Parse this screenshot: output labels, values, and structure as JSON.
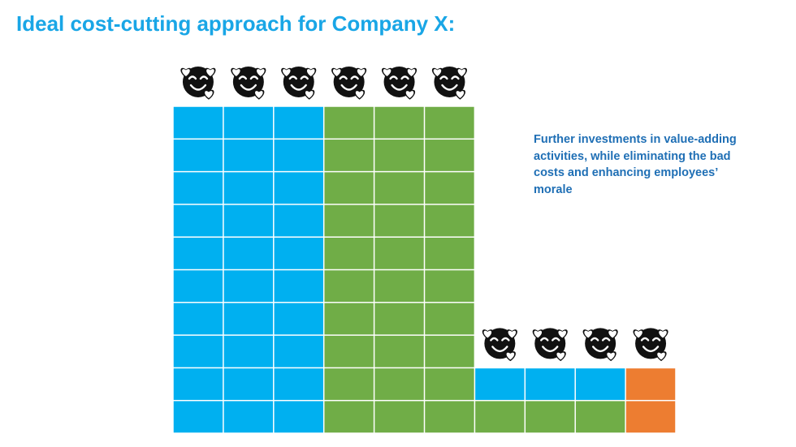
{
  "title": "Ideal cost-cutting approach for Company X:",
  "note_lines": [
    "Further investments in value-adding",
    "activities, while eliminating the bad",
    "costs and enhancing employees’",
    "morale"
  ],
  "colors": {
    "title": "#19a6e6",
    "note": "#1f6fb5",
    "blue": "#00b0f0",
    "green": "#70ad47",
    "orange": "#ed7d31",
    "grid_line": "#ffffff",
    "emoji_face": "#111111"
  },
  "icon": "smiling-face-with-hearts-icon",
  "grid": {
    "columns": [
      {
        "cells": [
          "blue",
          "blue",
          "blue",
          "blue",
          "blue",
          "blue",
          "blue",
          "blue",
          "blue",
          "blue"
        ],
        "emoji": true
      },
      {
        "cells": [
          "blue",
          "blue",
          "blue",
          "blue",
          "blue",
          "blue",
          "blue",
          "blue",
          "blue",
          "blue"
        ],
        "emoji": true
      },
      {
        "cells": [
          "blue",
          "blue",
          "blue",
          "blue",
          "blue",
          "blue",
          "blue",
          "blue",
          "blue",
          "blue"
        ],
        "emoji": true
      },
      {
        "cells": [
          "green",
          "green",
          "green",
          "green",
          "green",
          "green",
          "green",
          "green",
          "green",
          "green"
        ],
        "emoji": true
      },
      {
        "cells": [
          "green",
          "green",
          "green",
          "green",
          "green",
          "green",
          "green",
          "green",
          "green",
          "green"
        ],
        "emoji": true
      },
      {
        "cells": [
          "green",
          "green",
          "green",
          "green",
          "green",
          "green",
          "green",
          "green",
          "green",
          "green"
        ],
        "emoji": true
      },
      {
        "cells": [
          "green",
          "blue"
        ],
        "emoji": true
      },
      {
        "cells": [
          "green",
          "blue"
        ],
        "emoji": true
      },
      {
        "cells": [
          "green",
          "blue"
        ],
        "emoji": true
      },
      {
        "cells": [
          "orange",
          "orange"
        ],
        "emoji": true
      }
    ]
  }
}
